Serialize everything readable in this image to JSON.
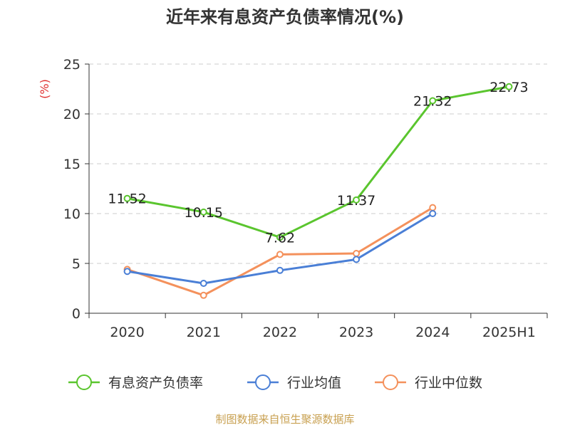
{
  "chart_data": {
    "type": "line",
    "title": "近年来有息资产负债率情况(%)",
    "ylabel": "(%)",
    "xlabel": "",
    "categories": [
      "2020",
      "2021",
      "2022",
      "2023",
      "2024",
      "2025H1"
    ],
    "ylim": [
      0,
      25
    ],
    "yticks": [
      0,
      5,
      10,
      15,
      20,
      25
    ],
    "grid": true,
    "legend_position": "bottom",
    "series": [
      {
        "name": "有息资产负债率",
        "color": "#5ac52e",
        "values": [
          11.52,
          10.15,
          7.62,
          11.37,
          21.32,
          22.73
        ],
        "labels": [
          "11.52",
          "10.15",
          "7.62",
          "11.37",
          "21.32",
          "22.73"
        ]
      },
      {
        "name": "行业均值",
        "color": "#4a7fd6",
        "values": [
          4.2,
          3.0,
          4.3,
          5.4,
          10.0,
          null
        ]
      },
      {
        "name": "行业中位数",
        "color": "#f4915c",
        "values": [
          4.4,
          1.8,
          5.9,
          6.0,
          10.6,
          null
        ]
      }
    ],
    "source": "制图数据来自恒生聚源数据库"
  }
}
